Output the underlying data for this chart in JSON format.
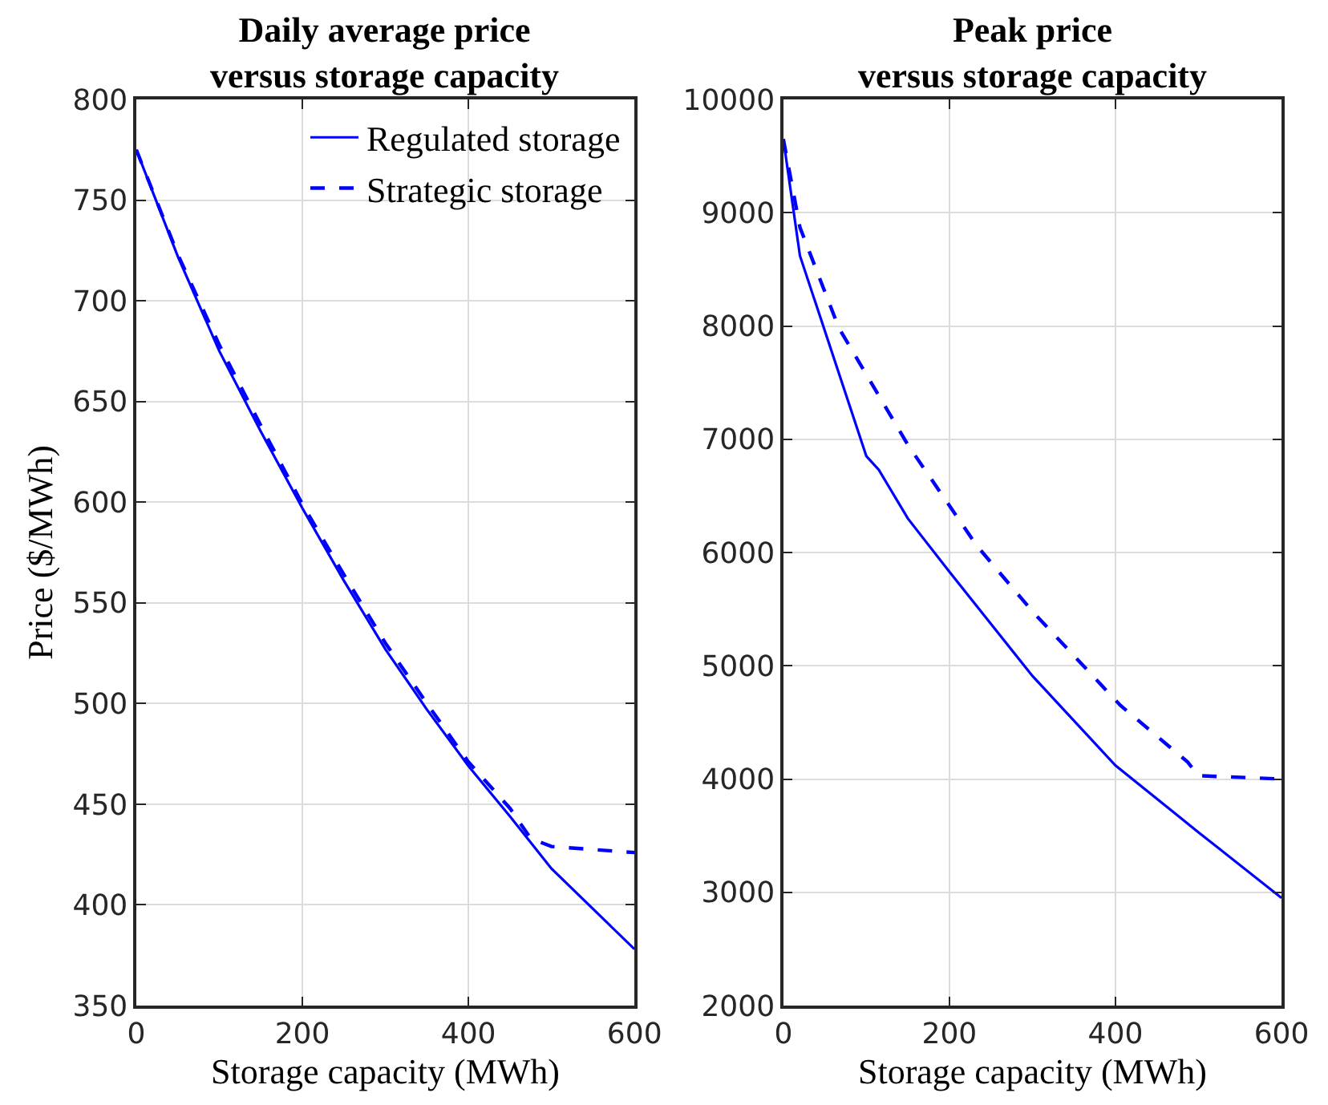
{
  "chart_data": [
    {
      "type": "line",
      "title": "Daily average price\nversus storage capacity",
      "xlabel": "Storage capacity (MWh)",
      "ylabel": "Price ($/MWh)",
      "xlim": [
        0,
        600
      ],
      "xticks": [
        0,
        200,
        400,
        600
      ],
      "ylim": [
        350,
        800
      ],
      "yticks": [
        350,
        400,
        450,
        500,
        550,
        600,
        650,
        700,
        750,
        800
      ],
      "grid": true,
      "legend": "top right",
      "marker": "none",
      "series": [
        {
          "name": "Regulated storage",
          "color": "#0000ff",
          "line_style": "solid",
          "x": [
            0,
            50,
            100,
            150,
            200,
            250,
            300,
            350,
            400,
            450,
            500,
            550,
            600
          ],
          "values": [
            775,
            722,
            675,
            635,
            597,
            561,
            527,
            497,
            469,
            444,
            418,
            398,
            378
          ]
        },
        {
          "name": "Strategic storage",
          "color": "#0000ff",
          "line_style": "dashed",
          "x": [
            0,
            50,
            100,
            150,
            200,
            250,
            300,
            350,
            400,
            450,
            475,
            500,
            600
          ],
          "values": [
            775,
            723,
            678,
            638,
            599,
            564,
            530,
            500,
            471,
            448,
            433,
            429,
            426
          ]
        }
      ]
    },
    {
      "type": "line",
      "title": "Peak price\nversus storage capacity",
      "xlabel": "Storage capacity (MWh)",
      "xlim": [
        0,
        600
      ],
      "xticks": [
        0,
        200,
        400,
        600
      ],
      "ylim": [
        2000,
        10000
      ],
      "yticks": [
        2000,
        3000,
        4000,
        5000,
        6000,
        7000,
        8000,
        9000,
        10000
      ],
      "grid": true,
      "legend": false,
      "marker": "none",
      "series": [
        {
          "color": "#0000ff",
          "line_style": "solid",
          "x": [
            0,
            20,
            100,
            115,
            150,
            200,
            300,
            400,
            500,
            600
          ],
          "values": [
            9650,
            8620,
            6850,
            6730,
            6300,
            5830,
            4910,
            4120,
            3530,
            2950
          ]
        },
        {
          "color": "#0000ff",
          "line_style": "dashed",
          "x": [
            0,
            20,
            67,
            150,
            233,
            300,
            406,
            487,
            500,
            600
          ],
          "values": [
            9650,
            8870,
            7980,
            6950,
            6060,
            5480,
            4650,
            4150,
            4030,
            4000
          ]
        }
      ]
    }
  ]
}
